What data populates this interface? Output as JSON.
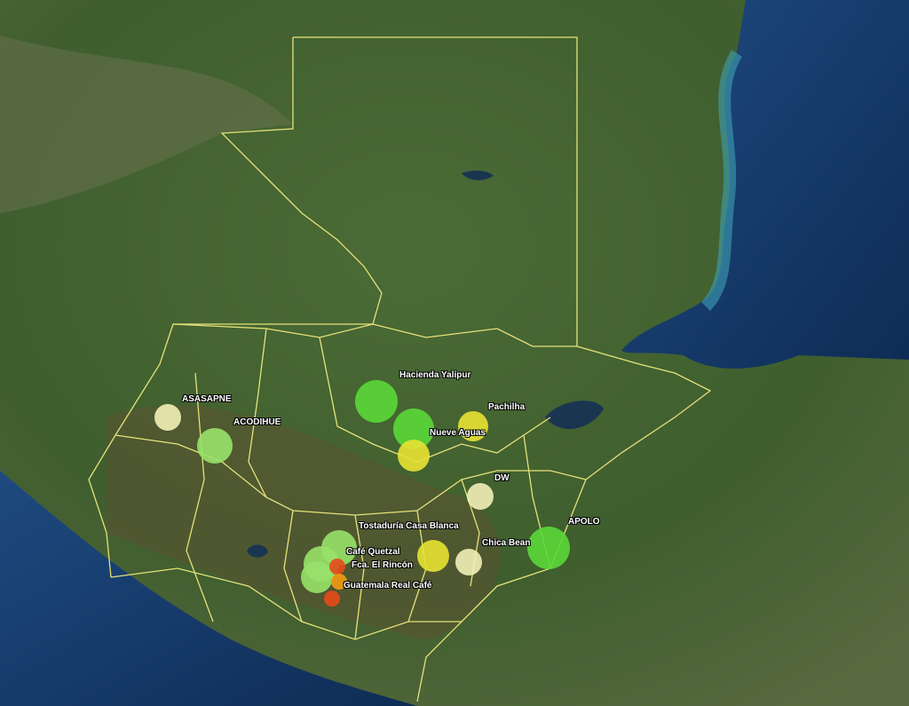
{
  "markers": [
    {
      "label": "ASASAPNE"
    },
    {
      "label": "ACODIHUE"
    },
    {
      "label": "Hacienda Yalipur"
    },
    {
      "label": "Nueve Aguas"
    },
    {
      "label": "Pachilha"
    },
    {
      "label": "DW"
    },
    {
      "label": "Tostaduría Casa Blanca"
    },
    {
      "label": "APOLO"
    },
    {
      "label": "Chica Bean"
    },
    {
      "label": "Café Quetzal"
    },
    {
      "label": "Fca. El Rincón"
    },
    {
      "label": "Guatemala Real Café"
    }
  ]
}
